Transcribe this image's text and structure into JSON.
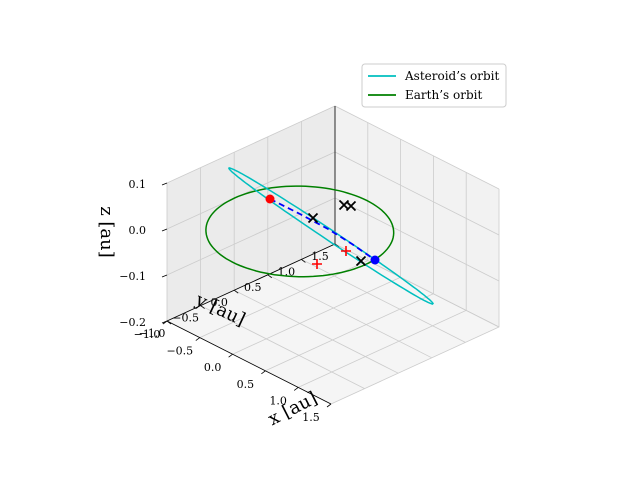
{
  "chart_data": {
    "type": "line",
    "projection": "3d",
    "grid": true,
    "legend_placement": "top-right",
    "xlabel": "x [au]",
    "ylabel": "y [au]",
    "zlabel": "z [au]",
    "xlim": [
      -1.0,
      1.5
    ],
    "ylim": [
      -1.0,
      1.5
    ],
    "zlim": [
      -0.2,
      0.1
    ],
    "x_ticks": [
      "−1.0",
      "−0.5",
      "0.0",
      "0.5",
      "1.0",
      "1.5"
    ],
    "y_ticks": [
      "−1.0",
      "−0.5",
      "0.0",
      "0.5",
      "1.0",
      "1.5"
    ],
    "z_ticks": [
      "−0.2",
      "−0.1",
      "0.0",
      "0.1"
    ],
    "series": [
      {
        "name": "Asteroid’s orbit",
        "color": "#00bfbf",
        "style": "solid",
        "kind": "ellipse"
      },
      {
        "name": "Earth’s orbit",
        "color": "#008000",
        "style": "solid",
        "kind": "circle"
      }
    ],
    "markers": {
      "red_dot": {
        "color": "#ff0000",
        "shape": "circle"
      },
      "blue_dot": {
        "color": "#0000ff",
        "shape": "circle"
      },
      "red_plus": {
        "color": "#ff0000",
        "shape": "plus",
        "count": 2
      },
      "black_x": {
        "color": "#000000",
        "shape": "x",
        "count": 4
      },
      "dashed_path": {
        "color": "#0000ff",
        "style": "dashed"
      }
    }
  }
}
